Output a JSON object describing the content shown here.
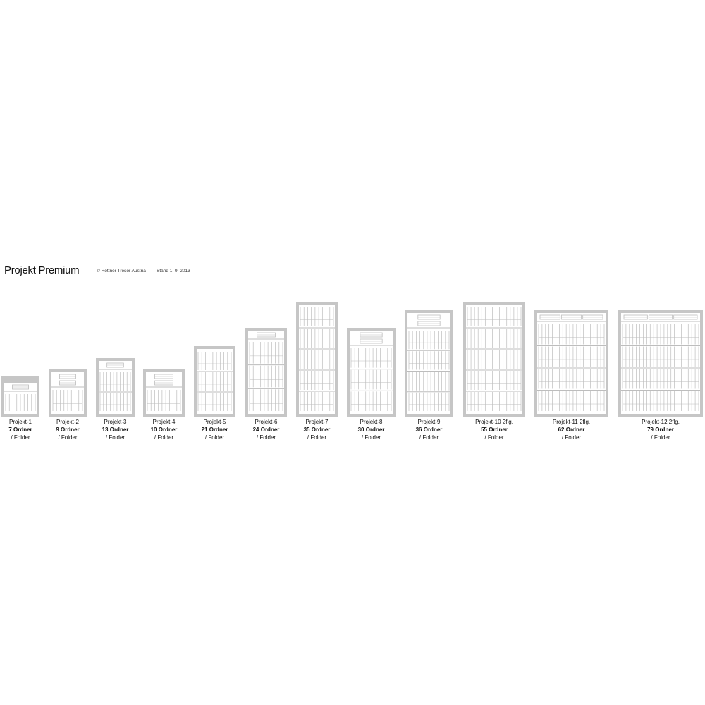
{
  "header": {
    "title": "Projekt Premium",
    "copyright": "© Rottner Tresor Austria",
    "stand": "Stand 1. 9. 2013"
  },
  "colors": {
    "frame": "#c6c6c6",
    "lines": "#bdbdbd",
    "text": "#111111"
  },
  "safes": [
    {
      "name": "Projekt-1",
      "suffix": "",
      "count": "7 Ordner",
      "unit": "/ Folder",
      "drawers": 1,
      "shelves": 1,
      "top_panel": true
    },
    {
      "name": "Projekt-2",
      "suffix": "",
      "count": "9 Ordner",
      "unit": "/ Folder",
      "drawers": 2,
      "shelves": 1
    },
    {
      "name": "Projekt-3",
      "suffix": "",
      "count": "13 Ordner",
      "unit": "/ Folder",
      "drawers": 1,
      "shelves": 2
    },
    {
      "name": "Projekt-4",
      "suffix": "",
      "count": "10 Ordner",
      "unit": "/ Folder",
      "drawers": 2,
      "shelves": 1
    },
    {
      "name": "Projekt-5",
      "suffix": "",
      "count": "21 Ordner",
      "unit": "/ Folder",
      "drawers": 0,
      "shelves": 3
    },
    {
      "name": "Projekt-6",
      "suffix": "",
      "count": "24 Ordner",
      "unit": "/ Folder",
      "drawers": 1,
      "shelves": 3
    },
    {
      "name": "Projekt-7",
      "suffix": "",
      "count": "35 Ordner",
      "unit": "/ Folder",
      "drawers": 0,
      "shelves": 5
    },
    {
      "name": "Projekt-8",
      "suffix": "",
      "count": "30 Ordner",
      "unit": "/ Folder",
      "drawers": 2,
      "shelves": 3
    },
    {
      "name": "Projekt-9",
      "suffix": "",
      "count": "36 Ordner",
      "unit": "/ Folder",
      "drawers": 2,
      "shelves": 4
    },
    {
      "name": "Projekt-10",
      "suffix": "2flg.",
      "count": "55 Ordner",
      "unit": "/ Folder",
      "drawers": 0,
      "shelves": 5
    },
    {
      "name": "Projekt-11",
      "suffix": "2flg.",
      "count": "62 Ordner",
      "unit": "/ Folder",
      "drawers": 3,
      "shelves": 4
    },
    {
      "name": "Projekt-12",
      "suffix": "2flg.",
      "count": "79 Ordner",
      "unit": "/ Folder",
      "drawers": 3,
      "shelves": 4
    }
  ]
}
